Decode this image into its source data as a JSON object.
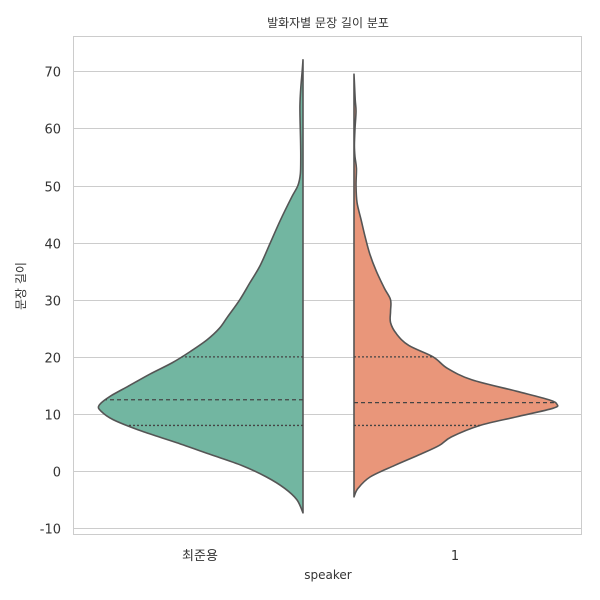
{
  "chart_data": {
    "type": "violin",
    "title": "발화자별 문장 길이 분포",
    "xlabel": "speaker",
    "ylabel": "문장 길이",
    "ylim": [
      -11,
      76
    ],
    "yticks": [
      -10,
      0,
      10,
      20,
      30,
      40,
      50,
      60,
      70
    ],
    "ytick_labels": [
      "-10",
      "0",
      "10",
      "20",
      "30",
      "40",
      "50",
      "60",
      "70"
    ],
    "grid": true,
    "split": true,
    "inner": "quartile",
    "categories": [
      "최준용",
      "1"
    ],
    "series": [
      {
        "colour": "#72b6a1",
        "side": "left",
        "range": [
          -7.3,
          72
        ],
        "quartiles": [
          8,
          12.5,
          20
        ],
        "density_profile": [
          [
            -7.3,
            0.0
          ],
          [
            -5,
            0.03
          ],
          [
            -3,
            0.09
          ],
          [
            -1,
            0.18
          ],
          [
            1,
            0.3
          ],
          [
            3,
            0.46
          ],
          [
            5,
            0.62
          ],
          [
            7,
            0.79
          ],
          [
            9,
            0.93
          ],
          [
            10.5,
            0.99
          ],
          [
            11.5,
            1.0
          ],
          [
            13,
            0.95
          ],
          [
            15,
            0.85
          ],
          [
            17,
            0.75
          ],
          [
            19,
            0.64
          ],
          [
            21,
            0.55
          ],
          [
            23,
            0.47
          ],
          [
            25,
            0.41
          ],
          [
            27,
            0.37
          ],
          [
            30,
            0.31
          ],
          [
            33,
            0.26
          ],
          [
            36,
            0.21
          ],
          [
            40,
            0.16
          ],
          [
            44,
            0.11
          ],
          [
            48,
            0.055
          ],
          [
            50,
            0.025
          ],
          [
            52,
            0.013
          ],
          [
            55,
            0.011
          ],
          [
            58,
            0.012
          ],
          [
            61,
            0.014
          ],
          [
            64,
            0.015
          ],
          [
            67,
            0.011
          ],
          [
            70,
            0.004
          ],
          [
            72,
            0.0
          ]
        ]
      },
      {
        "colour": "#e9967a",
        "side": "right",
        "range": [
          -4.5,
          69.5
        ],
        "quartiles": [
          8,
          12,
          20
        ],
        "density_profile": [
          [
            -4.5,
            0.0
          ],
          [
            -3,
            0.02
          ],
          [
            -1,
            0.08
          ],
          [
            1,
            0.2
          ],
          [
            3,
            0.33
          ],
          [
            4.5,
            0.42
          ],
          [
            6,
            0.48
          ],
          [
            8,
            0.62
          ],
          [
            9.5,
            0.8
          ],
          [
            11,
            0.98
          ],
          [
            11.7,
            1.0
          ],
          [
            12.5,
            0.96
          ],
          [
            14,
            0.8
          ],
          [
            16,
            0.58
          ],
          [
            18,
            0.46
          ],
          [
            20,
            0.39
          ],
          [
            22,
            0.27
          ],
          [
            24,
            0.21
          ],
          [
            26,
            0.18
          ],
          [
            28,
            0.18
          ],
          [
            30,
            0.18
          ],
          [
            32,
            0.15
          ],
          [
            35,
            0.11
          ],
          [
            38,
            0.078
          ],
          [
            41,
            0.055
          ],
          [
            44,
            0.035
          ],
          [
            47,
            0.015
          ],
          [
            50,
            0.01
          ],
          [
            53,
            0.012
          ],
          [
            55,
            0.005
          ],
          [
            57,
            0.002
          ],
          [
            60,
            0.005
          ],
          [
            63,
            0.01
          ],
          [
            65,
            0.006
          ],
          [
            68,
            0.002
          ],
          [
            69.5,
            0.0
          ]
        ]
      }
    ]
  }
}
